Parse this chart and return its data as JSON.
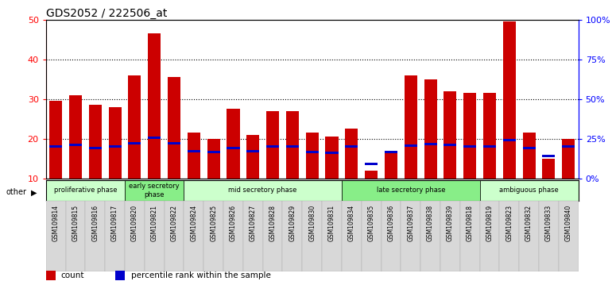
{
  "title": "GDS2052 / 222506_at",
  "samples": [
    "GSM109814",
    "GSM109815",
    "GSM109816",
    "GSM109817",
    "GSM109820",
    "GSM109821",
    "GSM109822",
    "GSM109824",
    "GSM109825",
    "GSM109826",
    "GSM109827",
    "GSM109828",
    "GSM109829",
    "GSM109830",
    "GSM109831",
    "GSM109834",
    "GSM109835",
    "GSM109836",
    "GSM109837",
    "GSM109838",
    "GSM109839",
    "GSM109818",
    "GSM109819",
    "GSM109823",
    "GSM109832",
    "GSM109833",
    "GSM109840"
  ],
  "counts": [
    29.5,
    31.0,
    28.5,
    28.0,
    36.0,
    46.5,
    35.5,
    21.5,
    20.0,
    27.5,
    21.0,
    27.0,
    27.0,
    21.5,
    20.5,
    22.5,
    12.0,
    16.5,
    36.0,
    35.0,
    32.0,
    31.5,
    31.5,
    49.5,
    21.5,
    15.0,
    20.0
  ],
  "percentile_ranks": [
    20.0,
    21.0,
    19.0,
    20.0,
    22.0,
    25.5,
    22.0,
    17.0,
    16.5,
    19.0,
    17.0,
    20.0,
    20.0,
    16.5,
    16.0,
    20.0,
    9.0,
    16.5,
    20.5,
    21.5,
    21.0,
    20.0,
    20.0,
    24.0,
    19.0,
    14.0,
    20.0
  ],
  "phases": [
    {
      "label": "proliferative phase",
      "start": 0,
      "end": 4,
      "color": "#ccffcc"
    },
    {
      "label": "early secretory\nphase",
      "start": 4,
      "end": 7,
      "color": "#88ee88"
    },
    {
      "label": "mid secretory phase",
      "start": 7,
      "end": 15,
      "color": "#ccffcc"
    },
    {
      "label": "late secretory phase",
      "start": 15,
      "end": 22,
      "color": "#88ee88"
    },
    {
      "label": "ambiguous phase",
      "start": 22,
      "end": 27,
      "color": "#ccffcc"
    }
  ],
  "bar_color": "#cc0000",
  "percentile_color": "#0000cc",
  "ylim_left": [
    10,
    50
  ],
  "ylim_right": [
    0,
    100
  ],
  "yticks_left": [
    10,
    20,
    30,
    40,
    50
  ],
  "yticks_right": [
    0,
    25,
    50,
    75,
    100
  ],
  "bg_color": "#ffffff",
  "title_fontsize": 10,
  "bar_width": 0.65
}
